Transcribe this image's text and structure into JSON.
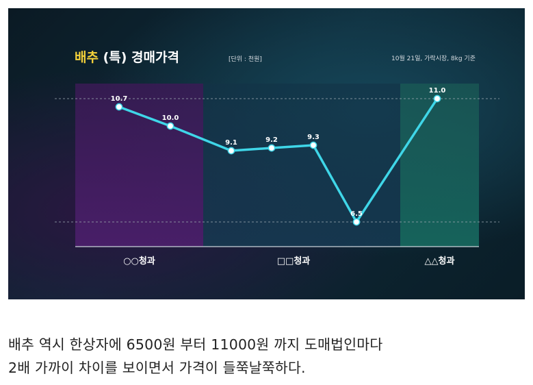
{
  "chart_data": {
    "type": "line",
    "title_accent": "배추",
    "title_rest": " (특) 경매가격",
    "unit_label": "[단위 : 천원]",
    "note": "10월 21일, 가락시장, 8kg 기준",
    "groups": [
      {
        "label": "○○청과",
        "color": "#3a1a55"
      },
      {
        "label": "□□청과",
        "color": "#173a4f"
      },
      {
        "label": "△△청과",
        "color": "#1a5a55"
      }
    ],
    "points": [
      {
        "group": 0,
        "value": 10.7,
        "label": "10.7"
      },
      {
        "group": 0,
        "value": 10.0,
        "label": "10.0"
      },
      {
        "group": 1,
        "value": 9.1,
        "label": "9.1"
      },
      {
        "group": 1,
        "value": 9.2,
        "label": "9.2"
      },
      {
        "group": 1,
        "value": 9.3,
        "label": "9.3"
      },
      {
        "group": 1,
        "value": 6.5,
        "label": "6.5"
      },
      {
        "group": 2,
        "value": 11.0,
        "label": "11.0"
      }
    ],
    "reference_lines": [
      11.0,
      6.5
    ],
    "line_color": "#3fd6e8"
  },
  "caption": {
    "line1": "배추 역시 한상자에 6500원 부터 11000원 까지  도매법인마다",
    "line2": "2배 가까이 차이를 보이면서 가격이 들쭉날쭉하다."
  }
}
